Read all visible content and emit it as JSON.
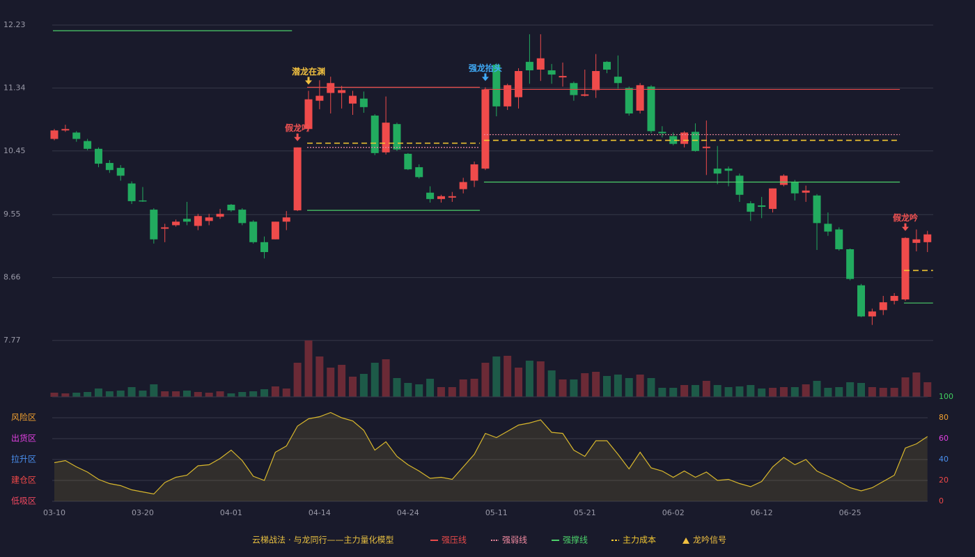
{
  "chart_data": [
    {
      "type": "candlestick",
      "up_color": "#ef4b4b",
      "down_color": "#22ab5f",
      "open": [
        10.62,
        10.74,
        10.71,
        10.59,
        10.48,
        10.28,
        10.21,
        9.99,
        9.75,
        9.62,
        9.35,
        9.4,
        9.49,
        9.39,
        9.46,
        9.52,
        9.69,
        9.62,
        9.45,
        9.16,
        9.2,
        9.45,
        9.61,
        10.76,
        11.16,
        11.27,
        11.27,
        11.12,
        11.19,
        10.95,
        10.43,
        10.83,
        10.41,
        10.22,
        9.86,
        9.77,
        9.79,
        9.91,
        10.03,
        10.2,
        11.67,
        11.08,
        11.21,
        11.71,
        11.6,
        11.59,
        11.49,
        11.41,
        11.23,
        11.31,
        11.71,
        11.5,
        11.34,
        11.02,
        11.36,
        10.72,
        10.66,
        10.55,
        10.72,
        10.49,
        10.2,
        10.2,
        10.1,
        9.71,
        9.68,
        9.63,
        9.97,
        10.01,
        9.86,
        9.82,
        9.42,
        9.34,
        9.06,
        8.55,
        8.11,
        8.2,
        8.33,
        8.35,
        9.15,
        9.16
      ],
      "high": [
        10.76,
        10.82,
        10.73,
        10.62,
        10.5,
        10.32,
        10.25,
        10.02,
        9.94,
        9.64,
        9.42,
        9.48,
        9.73,
        9.56,
        9.56,
        9.63,
        9.7,
        9.64,
        9.47,
        9.24,
        9.45,
        9.6,
        10.5,
        11.3,
        11.45,
        11.5,
        11.37,
        11.3,
        11.29,
        10.97,
        11.22,
        10.85,
        10.42,
        10.26,
        9.95,
        9.83,
        9.87,
        10.07,
        10.3,
        11.35,
        11.69,
        11.4,
        11.62,
        12.1,
        12.1,
        11.68,
        11.7,
        11.43,
        11.6,
        11.82,
        11.72,
        11.8,
        11.36,
        11.41,
        11.38,
        10.8,
        10.71,
        10.73,
        10.84,
        10.88,
        10.52,
        10.23,
        10.13,
        9.74,
        9.8,
        9.92,
        10.12,
        10.04,
        9.96,
        9.84,
        9.58,
        9.37,
        9.07,
        8.57,
        8.22,
        8.4,
        8.44,
        9.23,
        9.34,
        9.32
      ],
      "low": [
        10.6,
        10.72,
        10.58,
        10.46,
        10.22,
        10.14,
        10.03,
        9.7,
        9.73,
        9.14,
        9.16,
        9.38,
        9.4,
        9.33,
        9.4,
        9.49,
        9.59,
        9.4,
        9.14,
        8.93,
        9.2,
        9.33,
        9.6,
        10.72,
        11.04,
        10.98,
        11.05,
        10.96,
        10.99,
        10.39,
        10.4,
        10.45,
        10.18,
        10.06,
        9.72,
        9.72,
        9.73,
        9.85,
        9.94,
        10.18,
        10.94,
        11.03,
        11.05,
        11.4,
        11.44,
        11.4,
        11.36,
        11.16,
        11.22,
        11.2,
        11.55,
        11.33,
        10.95,
        10.98,
        10.7,
        10.64,
        10.53,
        10.5,
        10.44,
        10.11,
        9.98,
        9.95,
        9.73,
        9.46,
        9.5,
        9.58,
        9.95,
        9.75,
        9.73,
        9.05,
        9.25,
        9.04,
        8.62,
        8.1,
        7.99,
        8.13,
        8.28,
        8.33,
        9.03,
        9.02
      ],
      "close": [
        10.74,
        10.76,
        10.62,
        10.48,
        10.27,
        10.18,
        10.1,
        9.74,
        9.74,
        9.2,
        9.37,
        9.45,
        9.45,
        9.53,
        9.51,
        9.56,
        9.61,
        9.43,
        9.16,
        9.02,
        9.45,
        9.51,
        10.5,
        11.18,
        11.23,
        11.41,
        11.31,
        11.23,
        11.07,
        10.42,
        10.85,
        10.47,
        10.19,
        10.08,
        9.77,
        9.81,
        9.81,
        10.01,
        10.26,
        11.32,
        11.08,
        11.38,
        11.58,
        11.59,
        11.76,
        11.53,
        11.51,
        11.24,
        11.25,
        11.58,
        11.6,
        11.41,
        10.98,
        11.38,
        10.73,
        10.7,
        10.55,
        10.71,
        10.45,
        10.51,
        10.13,
        10.17,
        9.83,
        9.59,
        9.66,
        9.92,
        10.1,
        9.85,
        9.89,
        9.43,
        9.31,
        9.06,
        8.64,
        8.11,
        8.18,
        8.31,
        8.4,
        9.22,
        9.2,
        9.27
      ],
      "ylim": [
        7.77,
        12.23
      ],
      "yticks": [
        12.23,
        11.34,
        10.45,
        9.55,
        8.66,
        7.77
      ],
      "grid": true,
      "levels": [
        {
          "name": "强压线",
          "color": "#e84a4a",
          "style": "solid",
          "segments": [
            {
              "from": 23,
              "to": 38,
              "value": 11.35
            },
            {
              "from": 39,
              "to": 76,
              "value": 11.32
            }
          ]
        },
        {
          "name": "强弱线",
          "color": "#f08aa0",
          "style": "dotted",
          "segments": [
            {
              "from": 23,
              "to": 38,
              "value": 10.5
            },
            {
              "from": 39,
              "to": 76,
              "value": 10.68
            }
          ]
        },
        {
          "name": "强撑线",
          "color": "#4cd06a",
          "style": "solid",
          "segments": [
            {
              "from": 0,
              "to": 21,
              "value": 12.15
            },
            {
              "from": 23,
              "to": 38,
              "value": 9.61
            },
            {
              "from": 39,
              "to": 76,
              "value": 10.01
            },
            {
              "from": 77,
              "to": 79,
              "value": 8.3
            }
          ]
        },
        {
          "name": "主力成本",
          "color": "#f5c932",
          "style": "dashed",
          "segments": [
            {
              "from": 23,
              "to": 38,
              "value": 10.56
            },
            {
              "from": 39,
              "to": 76,
              "value": 10.6
            },
            {
              "from": 77,
              "to": 79,
              "value": 8.76
            }
          ]
        }
      ],
      "signal_name": "龙吟信号",
      "signals": [
        {
          "index": 22,
          "label": "假龙吟",
          "color": "#f05252"
        },
        {
          "index": 23,
          "label": "潜龙在渊",
          "color": "#f0c040"
        },
        {
          "index": 39,
          "label": "强龙抬头",
          "color": "#3fa9f5"
        },
        {
          "index": 77,
          "label": "假龙吟",
          "color": "#f05252"
        }
      ]
    },
    {
      "type": "volume",
      "up_color": "#6b2a36",
      "down_color": "#1d5a48",
      "values": [
        6,
        5,
        6,
        7,
        12,
        8,
        9,
        14,
        9,
        18,
        8,
        8,
        9,
        7,
        6,
        8,
        5,
        7,
        8,
        11,
        15,
        12,
        49,
        81,
        58,
        42,
        46,
        29,
        33,
        49,
        54,
        27,
        20,
        18,
        26,
        14,
        14,
        25,
        26,
        49,
        58,
        59,
        42,
        52,
        51,
        38,
        25,
        25,
        34,
        36,
        30,
        32,
        27,
        32,
        27,
        13,
        13,
        17,
        17,
        23,
        17,
        14,
        15,
        17,
        12,
        13,
        14,
        14,
        18,
        23,
        13,
        14,
        21,
        20,
        14,
        13,
        13,
        28,
        35,
        21
      ]
    },
    {
      "type": "line",
      "color": "#d9b82c",
      "categories": [
        "03-10",
        null,
        null,
        null,
        null,
        null,
        null,
        null,
        "03-20",
        null,
        null,
        null,
        null,
        null,
        null,
        null,
        "04-01",
        null,
        null,
        null,
        null,
        null,
        null,
        null,
        "04-14",
        null,
        null,
        null,
        null,
        null,
        null,
        null,
        "04-24",
        null,
        null,
        null,
        null,
        null,
        null,
        null,
        "05-11",
        null,
        null,
        null,
        null,
        null,
        null,
        null,
        "05-21",
        null,
        null,
        null,
        null,
        null,
        null,
        null,
        "06-02",
        null,
        null,
        null,
        null,
        null,
        null,
        null,
        "06-12",
        null,
        null,
        null,
        null,
        null,
        null,
        null,
        "06-25",
        null,
        null,
        null,
        null,
        null,
        null,
        null
      ],
      "values": [
        37,
        39,
        33,
        28,
        21,
        17,
        15,
        11,
        9,
        7,
        18,
        23,
        25,
        34,
        35,
        41,
        49,
        39,
        24,
        20,
        47,
        53,
        72,
        79,
        81,
        85,
        80,
        77,
        68,
        49,
        57,
        43,
        35,
        29,
        22,
        23,
        21,
        33,
        45,
        65,
        61,
        67,
        73,
        75,
        78,
        66,
        65,
        49,
        43,
        58,
        58,
        45,
        31,
        47,
        32,
        29,
        23,
        29,
        23,
        28,
        20,
        21,
        17,
        14,
        19,
        33,
        42,
        35,
        40,
        29,
        24,
        19,
        13,
        10,
        13,
        19,
        25,
        51,
        55,
        62
      ],
      "ylim": [
        0,
        100
      ],
      "yticks": [
        0,
        20,
        40,
        60,
        80,
        100
      ],
      "ytick_colors": [
        "#f04848",
        "#f04848",
        "#4a90f0",
        "#e040e0",
        "#f0a030",
        "#40d060"
      ],
      "zones": [
        {
          "label": "低吸区",
          "value": 0,
          "color": "#f04860"
        },
        {
          "label": "建仓区",
          "value": 20,
          "color": "#f04848"
        },
        {
          "label": "拉升区",
          "value": 40,
          "color": "#4a90f0"
        },
        {
          "label": "出货区",
          "value": 60,
          "color": "#e040e0"
        },
        {
          "label": "风险区",
          "value": 80,
          "color": "#f0a030"
        }
      ]
    }
  ],
  "legend_title": "云梯战法 · 与龙同行——主力量化模型"
}
